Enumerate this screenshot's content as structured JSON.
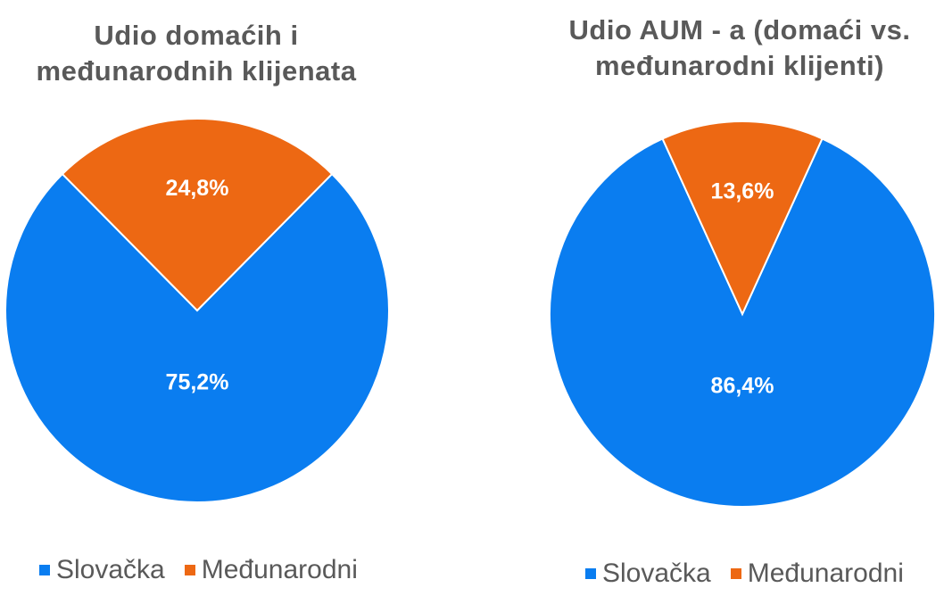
{
  "colors": {
    "slovacka": "#0a7df0",
    "medunarodni": "#ed6813",
    "title": "#595959",
    "label": "#ffffff"
  },
  "chart_data": [
    {
      "type": "pie",
      "title_lines": [
        "Udio domaćih i",
        "međunarodnih klijenata"
      ],
      "categories": [
        "Slovačka",
        "Međunarodni"
      ],
      "values": [
        75.2,
        24.8
      ],
      "data_labels": [
        "75,2%",
        "24,8%"
      ],
      "legend_position": "bottom"
    },
    {
      "type": "pie",
      "title_lines": [
        "Udio AUM - a (domaći vs.",
        "međunarodni klijenti)"
      ],
      "categories": [
        "Slovačka",
        "Međunarodni"
      ],
      "values": [
        86.4,
        13.6
      ],
      "data_labels": [
        "86,4%",
        "13,6%"
      ],
      "legend_position": "bottom"
    }
  ]
}
